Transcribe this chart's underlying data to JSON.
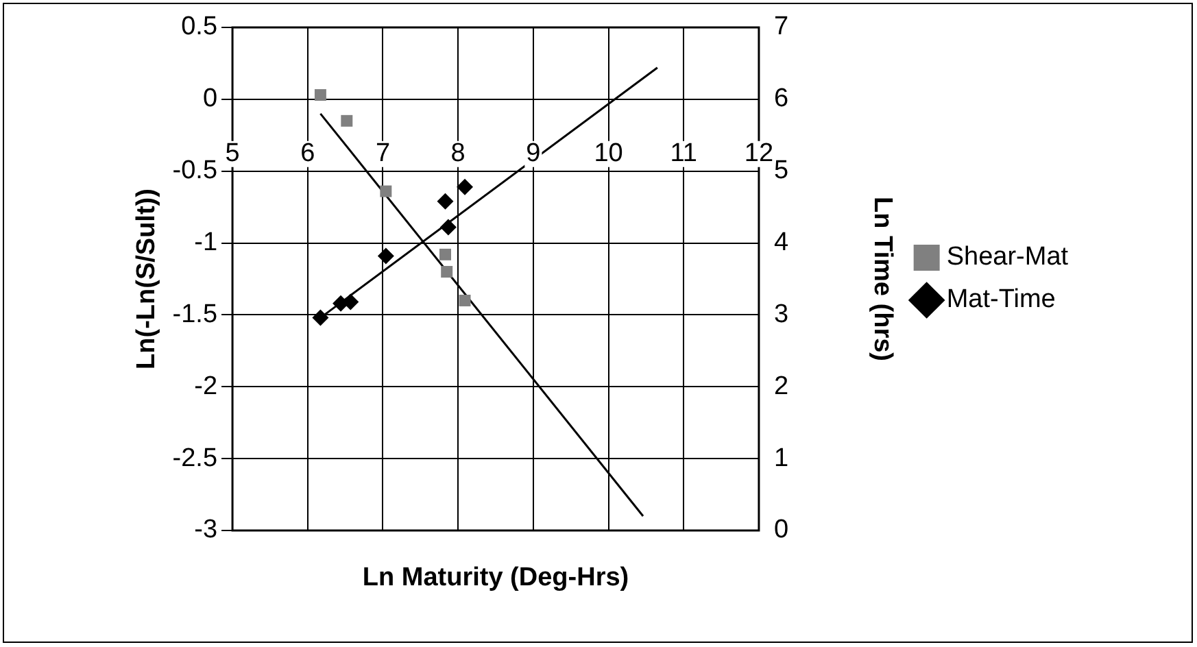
{
  "chart_data": {
    "type": "scatter",
    "xlabel": "Ln Maturity (Deg-Hrs)",
    "ylabel": "Ln(-Ln(S/Sult))",
    "y2label": "Ln Time (hrs)",
    "xlim": [
      5,
      12
    ],
    "xticks": [
      5,
      6,
      7,
      8,
      9,
      10,
      11,
      12
    ],
    "ylim": [
      -3,
      0.5
    ],
    "yticks": [
      -3,
      -2.5,
      -2,
      -1.5,
      -1,
      -0.5,
      0,
      0.5
    ],
    "y2lim": [
      0,
      7
    ],
    "y2ticks": [
      0,
      1,
      2,
      3,
      4,
      5,
      6,
      7
    ],
    "grid": true,
    "legend": "right",
    "series": [
      {
        "name": "Shear-Mat",
        "type": "scatter",
        "marker": "square",
        "color": "#808080",
        "x": [
          6.17,
          6.52,
          7.04,
          7.83,
          7.85,
          8.09
        ],
        "values": [
          0.03,
          -0.15,
          -0.64,
          -1.08,
          -1.2,
          -1.4
        ]
      },
      {
        "name": "Mat-Time",
        "type": "scatter",
        "marker": "diamond",
        "color": "#000000",
        "axis": "y2",
        "x": [
          6.17,
          6.44,
          6.57,
          7.04,
          7.83,
          7.87,
          8.09
        ],
        "values": [
          2.96,
          3.16,
          3.18,
          3.82,
          4.58,
          4.22,
          4.78
        ]
      },
      {
        "type": "line",
        "color": "#000000",
        "x": [
          6.17,
          10.46
        ],
        "values": [
          -0.1,
          -2.9
        ]
      },
      {
        "type": "line",
        "color": "#000000",
        "axis": "y2",
        "x": [
          6.17,
          10.65
        ],
        "values": [
          2.96,
          6.44
        ]
      }
    ]
  }
}
